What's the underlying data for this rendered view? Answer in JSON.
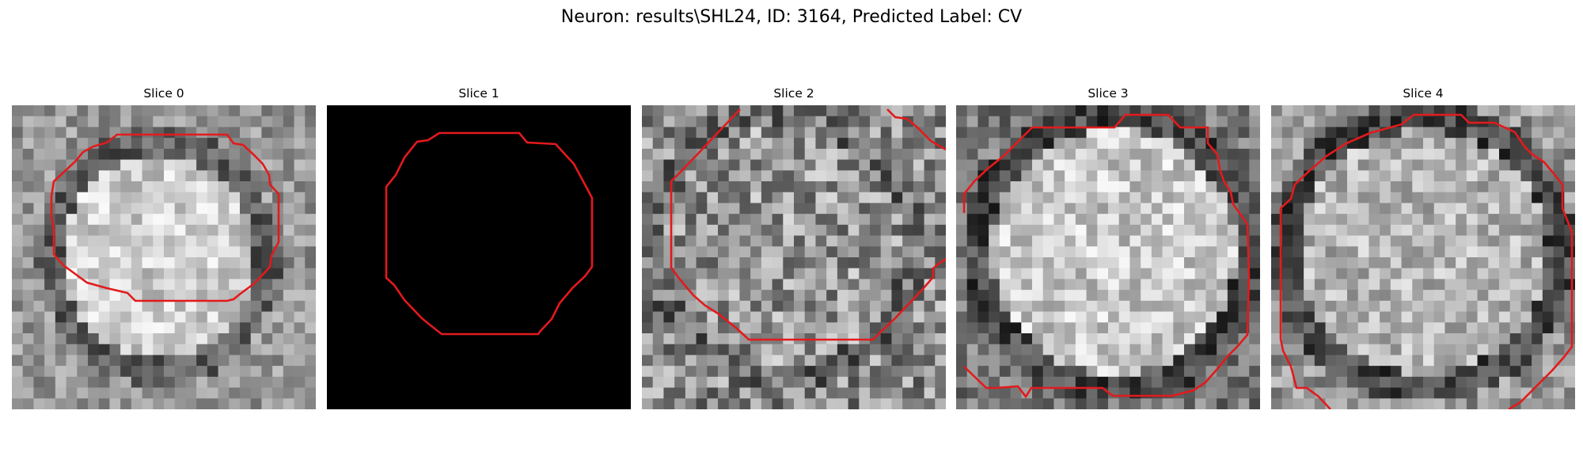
{
  "figure": {
    "title": "Neuron: results\\SHL24, ID: 3164, Predicted Label: CV"
  },
  "panels": [
    {
      "title": "Slice 0"
    },
    {
      "title": "Slice 1"
    },
    {
      "title": "Slice 2"
    },
    {
      "title": "Slice 3"
    },
    {
      "title": "Slice 4"
    }
  ],
  "colors": {
    "outline": "#e31a1c",
    "slice1_background": "#000000",
    "page_background": "#ffffff"
  }
}
